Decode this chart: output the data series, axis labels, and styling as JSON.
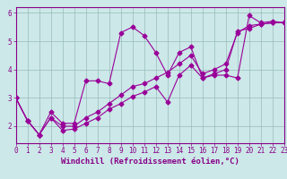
{
  "title": "",
  "xlabel": "Windchill (Refroidissement éolien,°C)",
  "bg_color": "#cce8e8",
  "line_color": "#990099",
  "grid_color": "#99bbbb",
  "xlim": [
    0,
    23
  ],
  "ylim": [
    1.4,
    6.2
  ],
  "yticks": [
    2,
    3,
    4,
    5,
    6
  ],
  "xticks": [
    0,
    1,
    2,
    3,
    4,
    5,
    6,
    7,
    8,
    9,
    10,
    11,
    12,
    13,
    14,
    15,
    16,
    17,
    18,
    19,
    20,
    21,
    22,
    23
  ],
  "series": [
    [
      3.0,
      2.2,
      1.7,
      2.5,
      2.1,
      2.1,
      3.6,
      3.6,
      3.5,
      5.3,
      5.5,
      5.2,
      4.6,
      3.8,
      4.6,
      4.8,
      3.7,
      3.8,
      3.8,
      3.7,
      5.9,
      5.65,
      5.7,
      5.65
    ],
    [
      3.0,
      2.2,
      1.7,
      2.3,
      1.85,
      1.9,
      2.1,
      2.3,
      2.6,
      2.8,
      3.05,
      3.2,
      3.4,
      2.85,
      3.8,
      4.15,
      3.7,
      3.85,
      4.0,
      5.35,
      5.45,
      5.6,
      5.65,
      5.65
    ],
    [
      3.0,
      2.2,
      1.7,
      2.3,
      2.0,
      2.0,
      2.3,
      2.5,
      2.8,
      3.1,
      3.4,
      3.5,
      3.7,
      3.9,
      4.2,
      4.5,
      3.85,
      4.0,
      4.2,
      5.3,
      5.55,
      5.6,
      5.65,
      5.65
    ]
  ],
  "marker": "D",
  "marker_size": 2.5,
  "line_width": 0.8,
  "xlabel_fontsize": 6.5,
  "tick_fontsize": 5.5,
  "xlabel_color": "#880088",
  "tick_color": "#880088",
  "spine_color": "#880088"
}
